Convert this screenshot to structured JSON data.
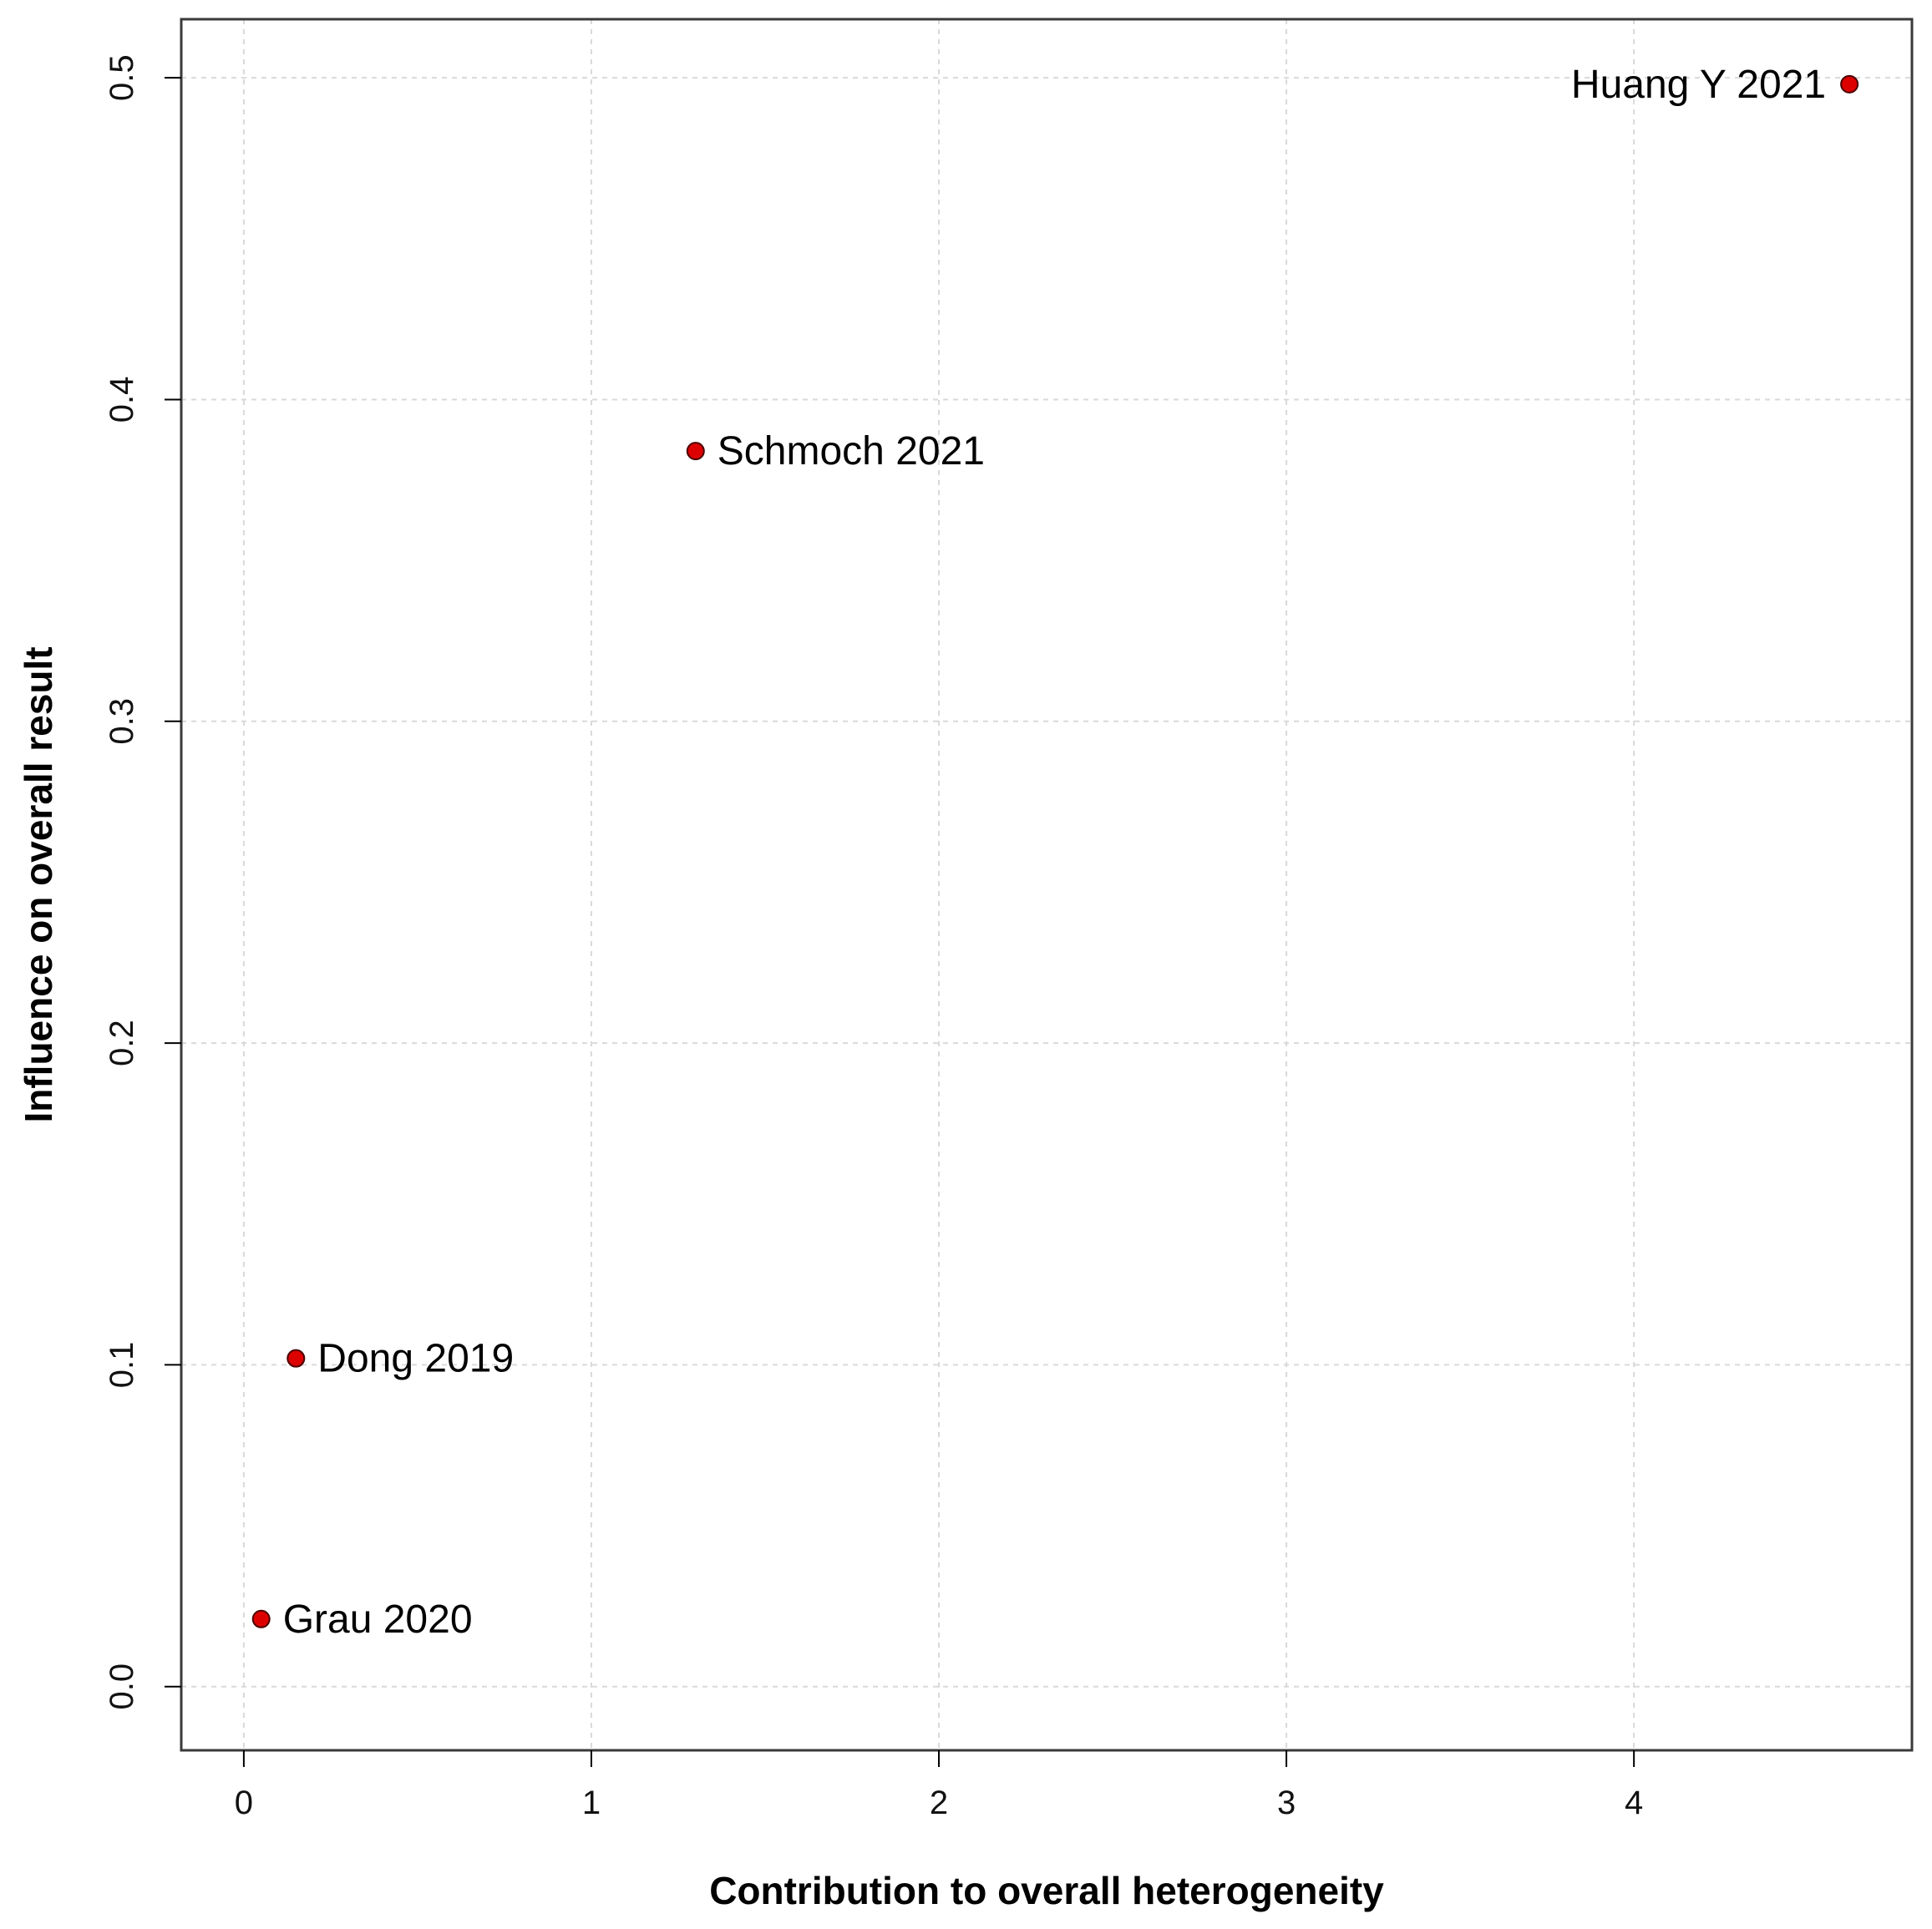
{
  "chart_data": {
    "type": "scatter",
    "xlabel": "Contribution to overall heterogeneity",
    "ylabel": "Influence on overall result",
    "xlim": [
      -0.18,
      4.8
    ],
    "ylim": [
      -0.0198,
      0.5182
    ],
    "x_ticks": [
      0,
      1,
      2,
      3,
      4
    ],
    "y_ticks": [
      0.0,
      0.1,
      0.2,
      0.3,
      0.4,
      0.5
    ],
    "x_tick_labels": [
      "0",
      "1",
      "2",
      "3",
      "4"
    ],
    "y_tick_labels": [
      "0.0",
      "0.1",
      "0.2",
      "0.3",
      "0.4",
      "0.5"
    ],
    "grid": true,
    "point_color": "#dd0000",
    "points": [
      {
        "label": "Huang Y 2021",
        "x": 4.62,
        "y": 0.498,
        "label_side": "left"
      },
      {
        "label": "Schmoch 2021",
        "x": 1.3,
        "y": 0.384,
        "label_side": "right"
      },
      {
        "label": "Dong 2019",
        "x": 0.15,
        "y": 0.102,
        "label_side": "right"
      },
      {
        "label": "Grau 2020",
        "x": 0.05,
        "y": 0.021,
        "label_side": "right"
      }
    ]
  }
}
